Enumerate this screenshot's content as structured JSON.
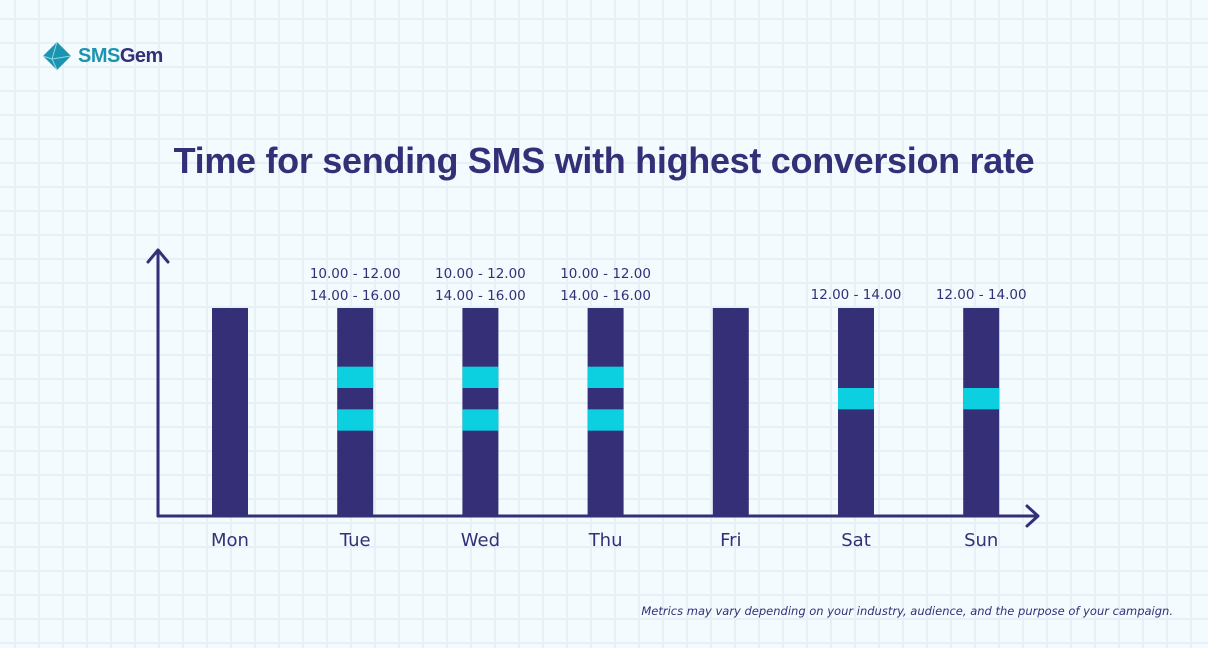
{
  "logo": {
    "part1": "SMS",
    "part2": "Gem"
  },
  "chart_data": {
    "type": "bar",
    "title": "Time for sending SMS with highest conversion rate",
    "categories": [
      "Mon",
      "Tue",
      "Wed",
      "Thu",
      "Fri",
      "Sat",
      "Sun"
    ],
    "windows": [
      [],
      [
        [
          "10.00",
          "12.00"
        ],
        [
          "14.00",
          "16.00"
        ]
      ],
      [
        [
          "10.00",
          "12.00"
        ],
        [
          "14.00",
          "16.00"
        ]
      ],
      [
        [
          "10.00",
          "12.00"
        ],
        [
          "14.00",
          "16.00"
        ]
      ],
      [],
      [
        [
          "12.00",
          "14.00"
        ]
      ],
      [
        [
          "12.00",
          "14.00"
        ]
      ]
    ],
    "colors": {
      "bar": "#352f78",
      "highlight": "#0ccfe0",
      "axis": "#352f78"
    }
  },
  "footnote": "Metrics may vary depending on your industry, audience, and the purpose of your campaign."
}
